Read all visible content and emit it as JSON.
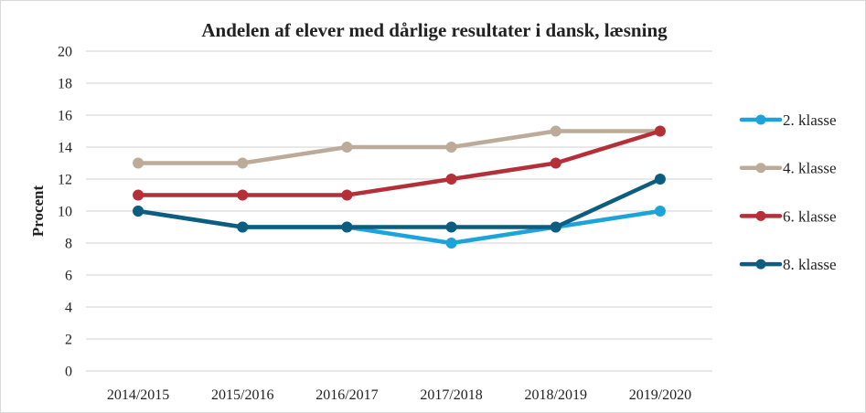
{
  "chart_data": {
    "type": "line",
    "title": "Andelen af  elever med dårlige resultater i dansk, læsning",
    "xlabel": "",
    "ylabel": "Procent",
    "ylim": [
      0,
      20
    ],
    "yticks": [
      "0",
      "2",
      "4",
      "6",
      "8",
      "10",
      "12",
      "14",
      "16",
      "18",
      "20"
    ],
    "grid": true,
    "legend_position": "right",
    "categories": [
      "2014/2015",
      "2015/2016",
      "2016/2017",
      "2017/2018",
      "2018/2019",
      "2019/2020"
    ],
    "series": [
      {
        "name": "2. klasse",
        "color": "#1ba3dc",
        "values": [
          10,
          9,
          9,
          8,
          9,
          10
        ]
      },
      {
        "name": "4. klasse",
        "color": "#bdab99",
        "values": [
          13,
          13,
          14,
          14,
          15,
          15
        ]
      },
      {
        "name": "6. klasse",
        "color": "#b52f38",
        "values": [
          11,
          11,
          11,
          12,
          13,
          15
        ]
      },
      {
        "name": "8. klasse",
        "color": "#0d5d80",
        "values": [
          10,
          9,
          9,
          9,
          9,
          12
        ]
      }
    ]
  }
}
